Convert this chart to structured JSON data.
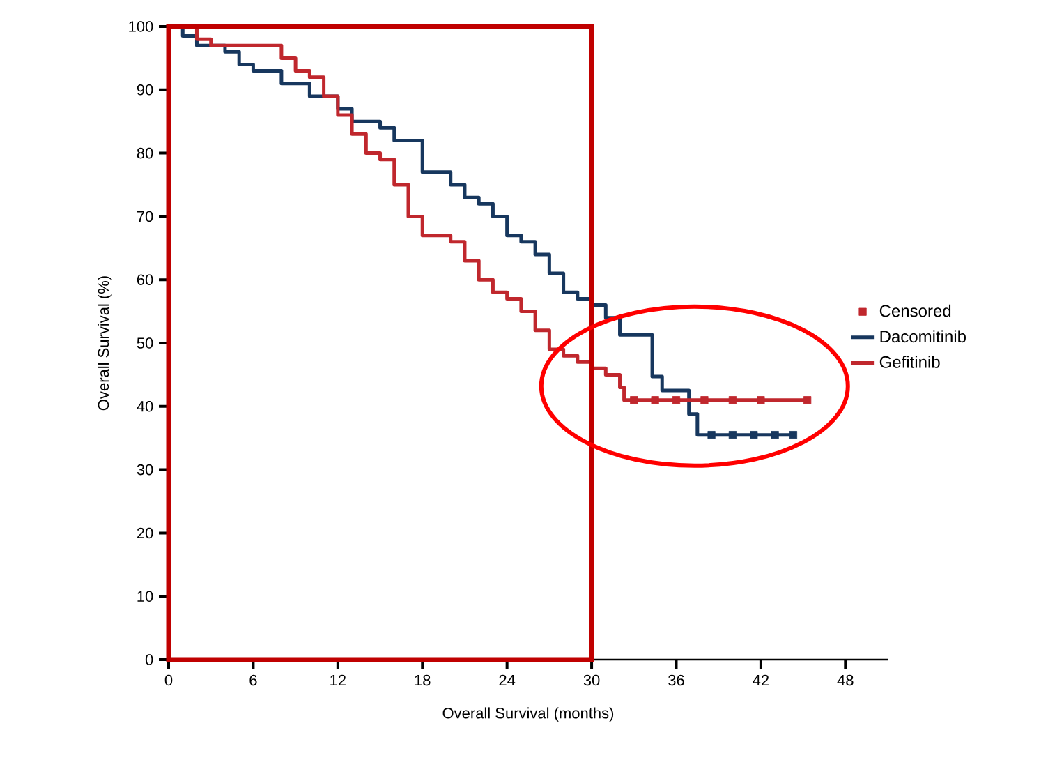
{
  "chart_data": {
    "type": "step",
    "xlabel": "Overall Survival (months)",
    "ylabel": "Overall Survival (%)",
    "xlim": [
      0,
      51
    ],
    "ylim": [
      0,
      100
    ],
    "xticks": [
      0,
      6,
      12,
      18,
      24,
      30,
      36,
      42,
      48
    ],
    "yticks": [
      0,
      10,
      20,
      30,
      40,
      50,
      60,
      70,
      80,
      90,
      100
    ],
    "grid": false,
    "legend": "right",
    "line_style": "solid",
    "series": [
      {
        "name": "Censored",
        "type": "scatter",
        "marker": "square",
        "color": "#c0272d",
        "x": [
          33,
          34.5,
          36,
          38,
          40,
          42,
          45.3
        ],
        "values": [
          41,
          41,
          41,
          41,
          41,
          41,
          41
        ]
      },
      {
        "name": "Dacomitinib",
        "color": "#17375e",
        "x": [
          0,
          1,
          2,
          4,
          5,
          6,
          8,
          10,
          12,
          13,
          15,
          16,
          18,
          20,
          21,
          22,
          23,
          24,
          25,
          26,
          27,
          28,
          29,
          30,
          31,
          32,
          34.3,
          35,
          36.9,
          37.5,
          44.3
        ],
        "values": [
          100,
          98.5,
          97,
          96,
          94,
          93,
          91,
          89,
          87,
          85,
          84,
          82,
          77,
          75,
          73,
          72,
          70,
          67,
          66,
          64,
          61,
          58,
          57,
          56,
          54,
          51.3,
          44.7,
          42.5,
          38.8,
          35.5,
          35.5
        ]
      },
      {
        "name": "Gefitinib",
        "color": "#c0272d",
        "x": [
          0,
          2,
          3,
          7,
          8,
          9,
          10,
          11,
          12,
          13,
          14,
          15,
          16,
          17,
          18,
          20,
          21,
          22,
          23,
          24,
          25,
          26,
          27,
          28,
          29,
          30,
          31,
          32,
          32.3,
          45.3
        ],
        "values": [
          100,
          98,
          97,
          97,
          95,
          93,
          92,
          89,
          86,
          83,
          80,
          79,
          75,
          70,
          67,
          66,
          63,
          60,
          58,
          57,
          55,
          52,
          49,
          48,
          47,
          46,
          45,
          43,
          41,
          41
        ]
      },
      {
        "type": "scatter",
        "marker": "square",
        "color": "#17375e",
        "x": [
          38.5,
          40,
          41.5,
          43,
          44.3
        ],
        "values": [
          35.5,
          35.5,
          35.5,
          35.5,
          35.5
        ]
      }
    ]
  }
}
